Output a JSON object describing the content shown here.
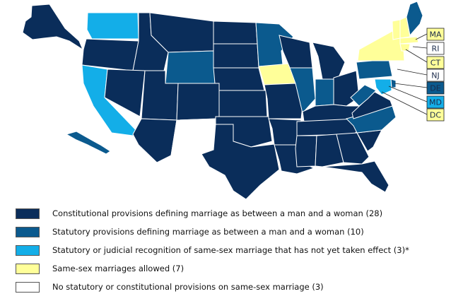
{
  "colors": {
    "constitutional": "#0a2d5a",
    "statutory": "#0b5a8e",
    "recognition_pending": "#13aee8",
    "allowed": "#ffff99",
    "none": "#ffffff",
    "border": "#ffffff"
  },
  "legend": [
    {
      "key": "constitutional",
      "label": "Constitutional provisions defining marriage as between a man and a woman (28)"
    },
    {
      "key": "statutory",
      "label": "Statutory provisions defining marriage as between a man and a woman (10)"
    },
    {
      "key": "recognition_pending",
      "label": "Statutory or judicial recognition of same-sex marriage that has not yet taken effect (3)*"
    },
    {
      "key": "allowed",
      "label": "Same-sex marriages allowed (7)"
    },
    {
      "key": "none",
      "label": "No statutory or constitutional provisions on same-sex marriage (3)"
    }
  ],
  "callouts": [
    {
      "abbr": "MA",
      "key": "allowed"
    },
    {
      "abbr": "RI",
      "key": "none"
    },
    {
      "abbr": "CT",
      "key": "allowed"
    },
    {
      "abbr": "NJ",
      "key": "none"
    },
    {
      "abbr": "DE",
      "key": "statutory"
    },
    {
      "abbr": "MD",
      "key": "recognition_pending"
    },
    {
      "abbr": "DC",
      "key": "allowed"
    }
  ]
}
